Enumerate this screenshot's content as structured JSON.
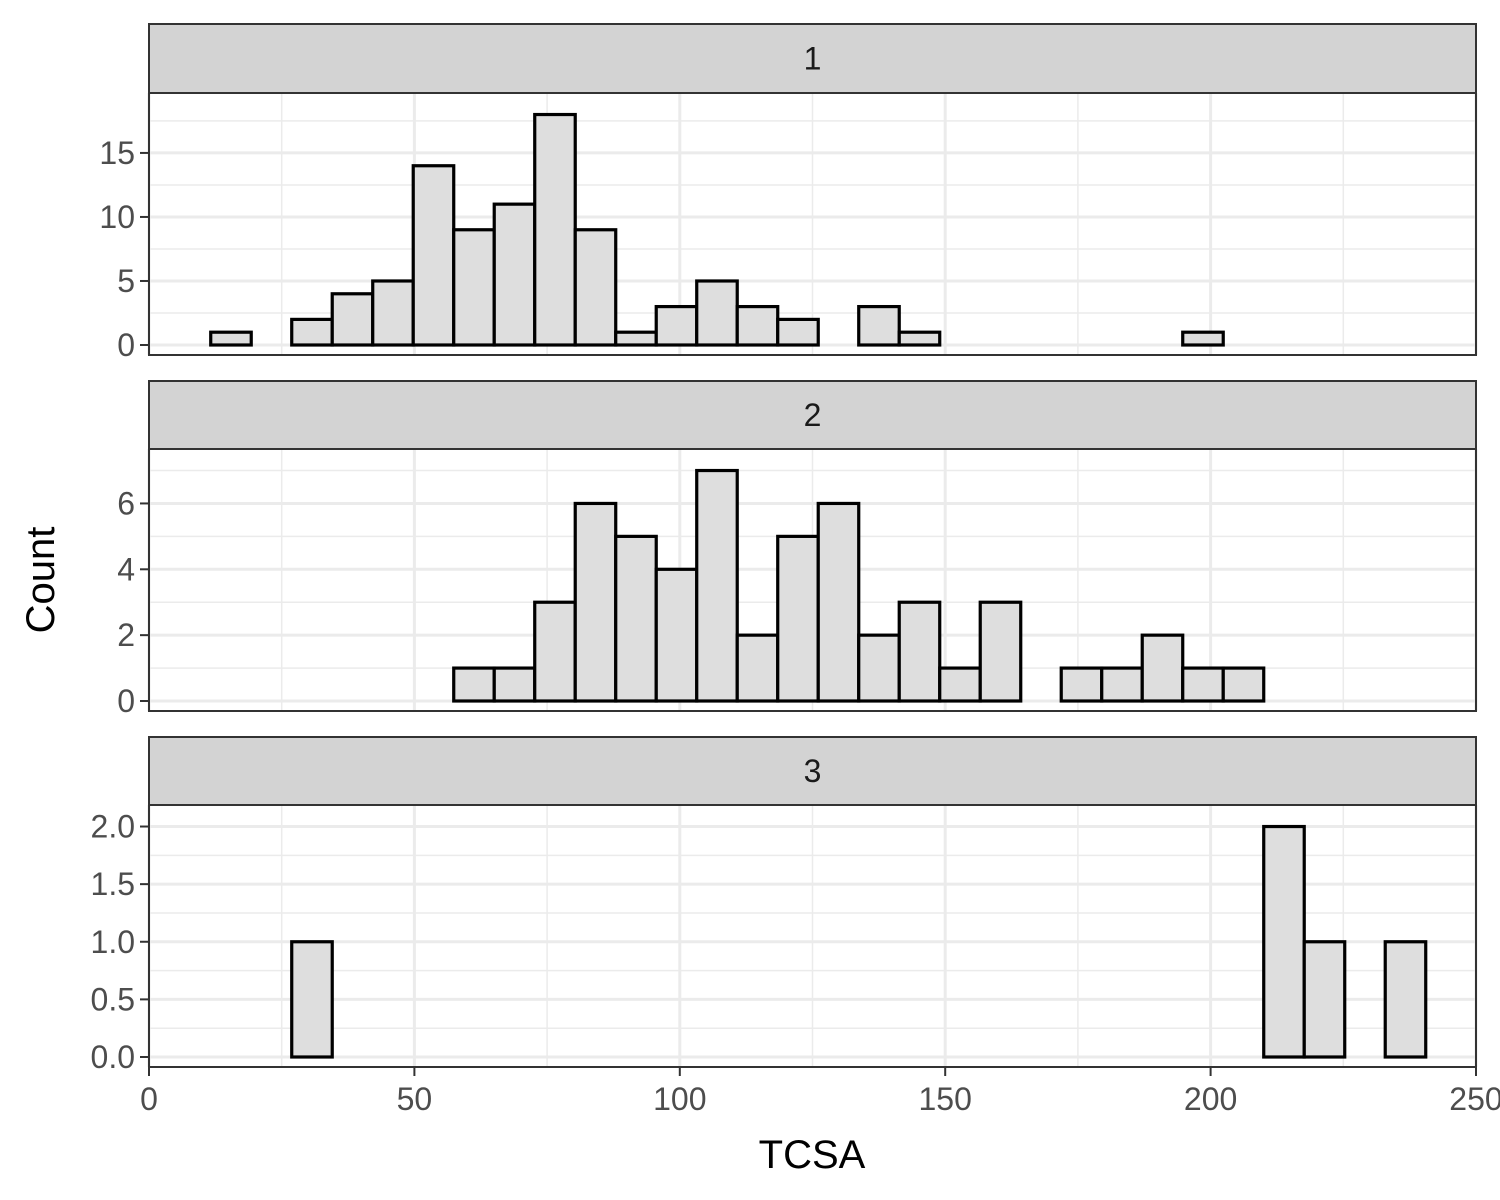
{
  "chart_data": {
    "type": "bar",
    "subtype": "faceted-histogram",
    "xlabel": "TCSA",
    "ylabel": "Count",
    "xlim": [
      0,
      250
    ],
    "x_ticks": [
      0,
      50,
      100,
      150,
      200,
      250
    ],
    "bin_width": 7.63,
    "bin_start": 11.63,
    "bin_count": 30,
    "grid": true,
    "colors": {
      "bar_fill": "#dedede",
      "bar_stroke": "#000000",
      "strip_fill": "#d3d3d3",
      "grid": "#ebebeb"
    },
    "facets": [
      {
        "label": "1",
        "ylim": [
          0,
          18.9
        ],
        "y_ticks": [
          0,
          5,
          10,
          15
        ],
        "y_tick_labels": [
          "0",
          "5",
          "10",
          "15"
        ],
        "values": [
          1,
          0,
          2,
          4,
          5,
          14,
          9,
          11,
          18,
          9,
          1,
          3,
          5,
          3,
          2,
          0,
          3,
          1,
          0,
          0,
          0,
          0,
          0,
          0,
          1,
          0,
          0,
          0,
          0,
          0
        ]
      },
      {
        "label": "2",
        "ylim": [
          0,
          7.35
        ],
        "y_ticks": [
          0,
          2,
          4,
          6
        ],
        "y_tick_labels": [
          "0",
          "2",
          "4",
          "6"
        ],
        "values": [
          0,
          0,
          0,
          0,
          0,
          0,
          1,
          1,
          3,
          6,
          5,
          4,
          7,
          2,
          5,
          6,
          2,
          3,
          1,
          3,
          0,
          1,
          1,
          2,
          1,
          1,
          0,
          0,
          0,
          0
        ]
      },
      {
        "label": "3",
        "ylim": [
          0,
          2.1
        ],
        "y_ticks": [
          0,
          0.5,
          1,
          1.5,
          2
        ],
        "y_tick_labels": [
          "0.0",
          "0.5",
          "1.0",
          "1.5",
          "2.0"
        ],
        "values": [
          0,
          0,
          1,
          0,
          0,
          0,
          0,
          0,
          0,
          0,
          0,
          0,
          0,
          0,
          0,
          0,
          0,
          0,
          0,
          0,
          0,
          0,
          0,
          0,
          0,
          0,
          2,
          1,
          0,
          1
        ]
      }
    ]
  }
}
